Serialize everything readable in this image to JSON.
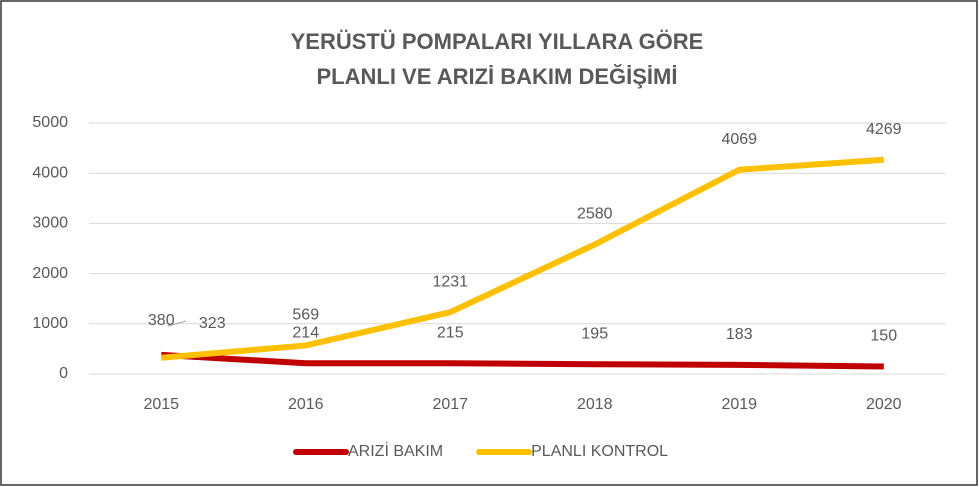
{
  "chart_data": {
    "type": "line",
    "title_lines": [
      "YERÜSTÜ POMPALARI YILLARA GÖRE",
      "PLANLI VE ARIZİ BAKIM DEĞİŞİMİ"
    ],
    "categories": [
      "2015",
      "2016",
      "2017",
      "2018",
      "2019",
      "2020"
    ],
    "series": [
      {
        "name": "ARIZİ BAKIM",
        "color": "#c00000",
        "values": [
          380,
          214,
          215,
          195,
          183,
          150
        ]
      },
      {
        "name": "PLANLI KONTROL",
        "color": "#ffc000",
        "values": [
          323,
          569,
          1231,
          2580,
          4069,
          4269
        ]
      }
    ],
    "ylim": [
      0,
      5000
    ],
    "yticks": [
      0,
      1000,
      2000,
      3000,
      4000,
      5000
    ],
    "grid": true,
    "legend": "bottom"
  }
}
